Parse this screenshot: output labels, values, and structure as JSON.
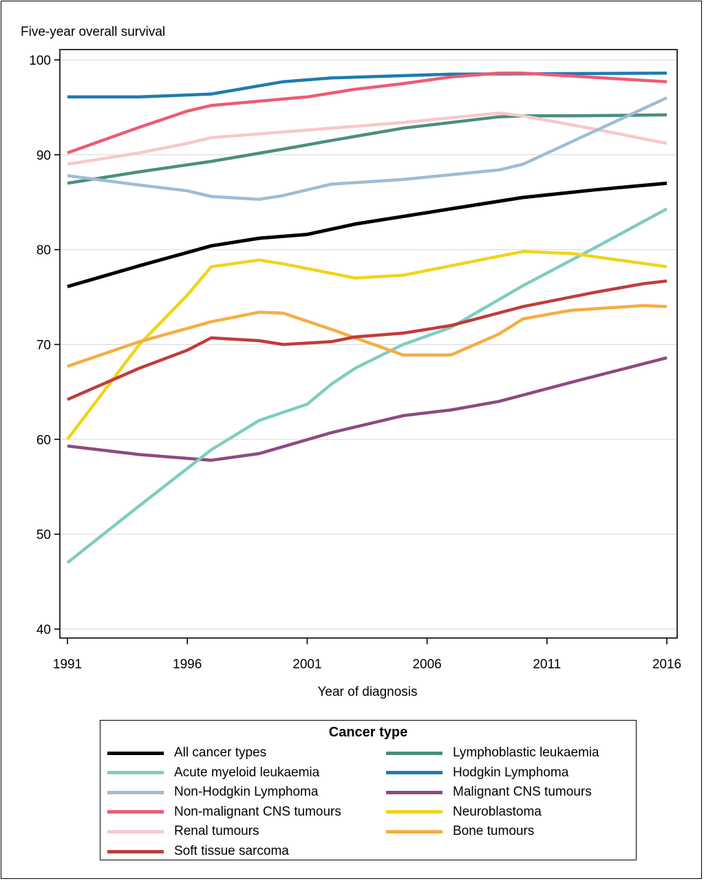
{
  "chart_data": {
    "type": "line",
    "title": "",
    "ylabel": "Five-year overall survival",
    "xlabel": "Year of diagnosis",
    "xlim": [
      1991,
      2016
    ],
    "ylim": [
      40,
      100
    ],
    "xticks": [
      1991,
      1996,
      2001,
      2006,
      2011,
      2016
    ],
    "yticks": [
      40,
      50,
      60,
      70,
      80,
      90,
      100
    ],
    "grid": "horizontal",
    "legend": {
      "title": "Cancer type",
      "placement": "bottom",
      "columns": 2
    },
    "series": [
      {
        "name": "All cancer types",
        "color": "#000000",
        "x": [
          1991,
          1994,
          1997,
          1999,
          2001,
          2003,
          2007,
          2010,
          2013,
          2016
        ],
        "y": [
          76.1,
          78.3,
          80.4,
          81.2,
          81.6,
          82.7,
          84.3,
          85.5,
          86.3,
          87.0
        ]
      },
      {
        "name": "Acute myeloid leukaemia",
        "color": "#7fcdc0",
        "x": [
          1991,
          1994,
          1997,
          1999,
          2001,
          2002,
          2003,
          2005,
          2007,
          2010,
          2013,
          2016
        ],
        "y": [
          47.0,
          53.0,
          58.9,
          62.0,
          63.7,
          65.8,
          67.5,
          70.0,
          71.8,
          76.2,
          80.2,
          84.3
        ]
      },
      {
        "name": "Non-Hodgkin Lymphoma",
        "color": "#9fbcd4",
        "x": [
          1991,
          1994,
          1996,
          1997,
          1999,
          2000,
          2002,
          2005,
          2009,
          2010,
          2016
        ],
        "y": [
          87.8,
          86.8,
          86.2,
          85.6,
          85.3,
          85.7,
          86.9,
          87.4,
          88.4,
          89.0,
          96.0
        ]
      },
      {
        "name": "Non-malignant CNS tumours",
        "color": "#ef5b72",
        "x": [
          1991,
          1994,
          1996,
          1997,
          2001,
          2003,
          2005,
          2007,
          2009,
          2010,
          2016
        ],
        "y": [
          90.2,
          92.9,
          94.6,
          95.2,
          96.1,
          96.9,
          97.5,
          98.2,
          98.6,
          98.6,
          97.7
        ]
      },
      {
        "name": "Renal tumours",
        "color": "#f8c8cb",
        "x": [
          1991,
          1994,
          1996,
          1997,
          1999,
          2005,
          2009,
          2010,
          2013,
          2016
        ],
        "y": [
          89.0,
          90.2,
          91.2,
          91.8,
          92.2,
          93.4,
          94.4,
          94.1,
          92.7,
          91.2
        ]
      },
      {
        "name": "Soft tissue sarcoma",
        "color": "#c23b3b",
        "x": [
          1991,
          1994,
          1996,
          1997,
          1999,
          2000,
          2002,
          2003,
          2005,
          2007,
          2010,
          2013,
          2015,
          2016
        ],
        "y": [
          64.2,
          67.5,
          69.4,
          70.7,
          70.4,
          70.0,
          70.3,
          70.8,
          71.2,
          72.0,
          74.0,
          75.5,
          76.4,
          76.7
        ]
      },
      {
        "name": "Lymphoblastic leukaemia",
        "color": "#4a8f7d",
        "x": [
          1991,
          1994,
          1997,
          2000,
          2002,
          2005,
          2009,
          2010,
          2012,
          2016
        ],
        "y": [
          87.0,
          88.2,
          89.3,
          90.6,
          91.5,
          92.8,
          94.0,
          94.1,
          94.1,
          94.2
        ]
      },
      {
        "name": "Hodgkin Lymphoma",
        "color": "#1f7bb0",
        "x": [
          1991,
          1994,
          1997,
          2000,
          2002,
          2007,
          2016
        ],
        "y": [
          96.1,
          96.1,
          96.4,
          97.7,
          98.1,
          98.5,
          98.6
        ]
      },
      {
        "name": "Malignant CNS tumours",
        "color": "#8e4a80",
        "x": [
          1991,
          1994,
          1997,
          1999,
          2002,
          2005,
          2007,
          2009,
          2012,
          2016
        ],
        "y": [
          59.3,
          58.4,
          57.8,
          58.5,
          60.7,
          62.5,
          63.1,
          64.0,
          66.0,
          68.6
        ]
      },
      {
        "name": "Neuroblastoma",
        "color": "#f0d41a",
        "x": [
          1991,
          1994,
          1996,
          1997,
          1999,
          2000,
          2003,
          2005,
          2009,
          2010,
          2012,
          2016
        ],
        "y": [
          60.0,
          70.0,
          75.2,
          78.2,
          78.9,
          78.5,
          77.0,
          77.3,
          79.3,
          79.8,
          79.6,
          78.2
        ]
      },
      {
        "name": "Bone tumours",
        "color": "#f6ad42",
        "x": [
          1991,
          1994,
          1997,
          1999,
          2000,
          2002,
          2005,
          2007,
          2009,
          2010,
          2012,
          2015,
          2016
        ],
        "y": [
          67.7,
          70.3,
          72.4,
          73.4,
          73.3,
          71.6,
          68.9,
          68.9,
          71.1,
          72.7,
          73.6,
          74.1,
          74.0
        ]
      }
    ],
    "draw_order": [
      "Lymphoblastic leukaemia",
      "Hodgkin Lymphoma",
      "Renal tumours",
      "Non-malignant CNS tumours",
      "Non-Hodgkin Lymphoma",
      "Malignant CNS tumours",
      "Acute myeloid leukaemia",
      "Neuroblastoma",
      "Bone tumours",
      "Soft tissue sarcoma",
      "All cancer types"
    ]
  },
  "legend": {
    "title": "Cancer type",
    "left_column": [
      "All cancer types",
      "Acute myeloid leukaemia",
      "Non-Hodgkin Lymphoma",
      "Non-malignant CNS tumours",
      "Renal tumours",
      "Soft tissue sarcoma"
    ],
    "right_column": [
      "Lymphoblastic leukaemia",
      "Hodgkin Lymphoma",
      "Malignant CNS tumours",
      "Neuroblastoma",
      "Bone tumours"
    ]
  }
}
